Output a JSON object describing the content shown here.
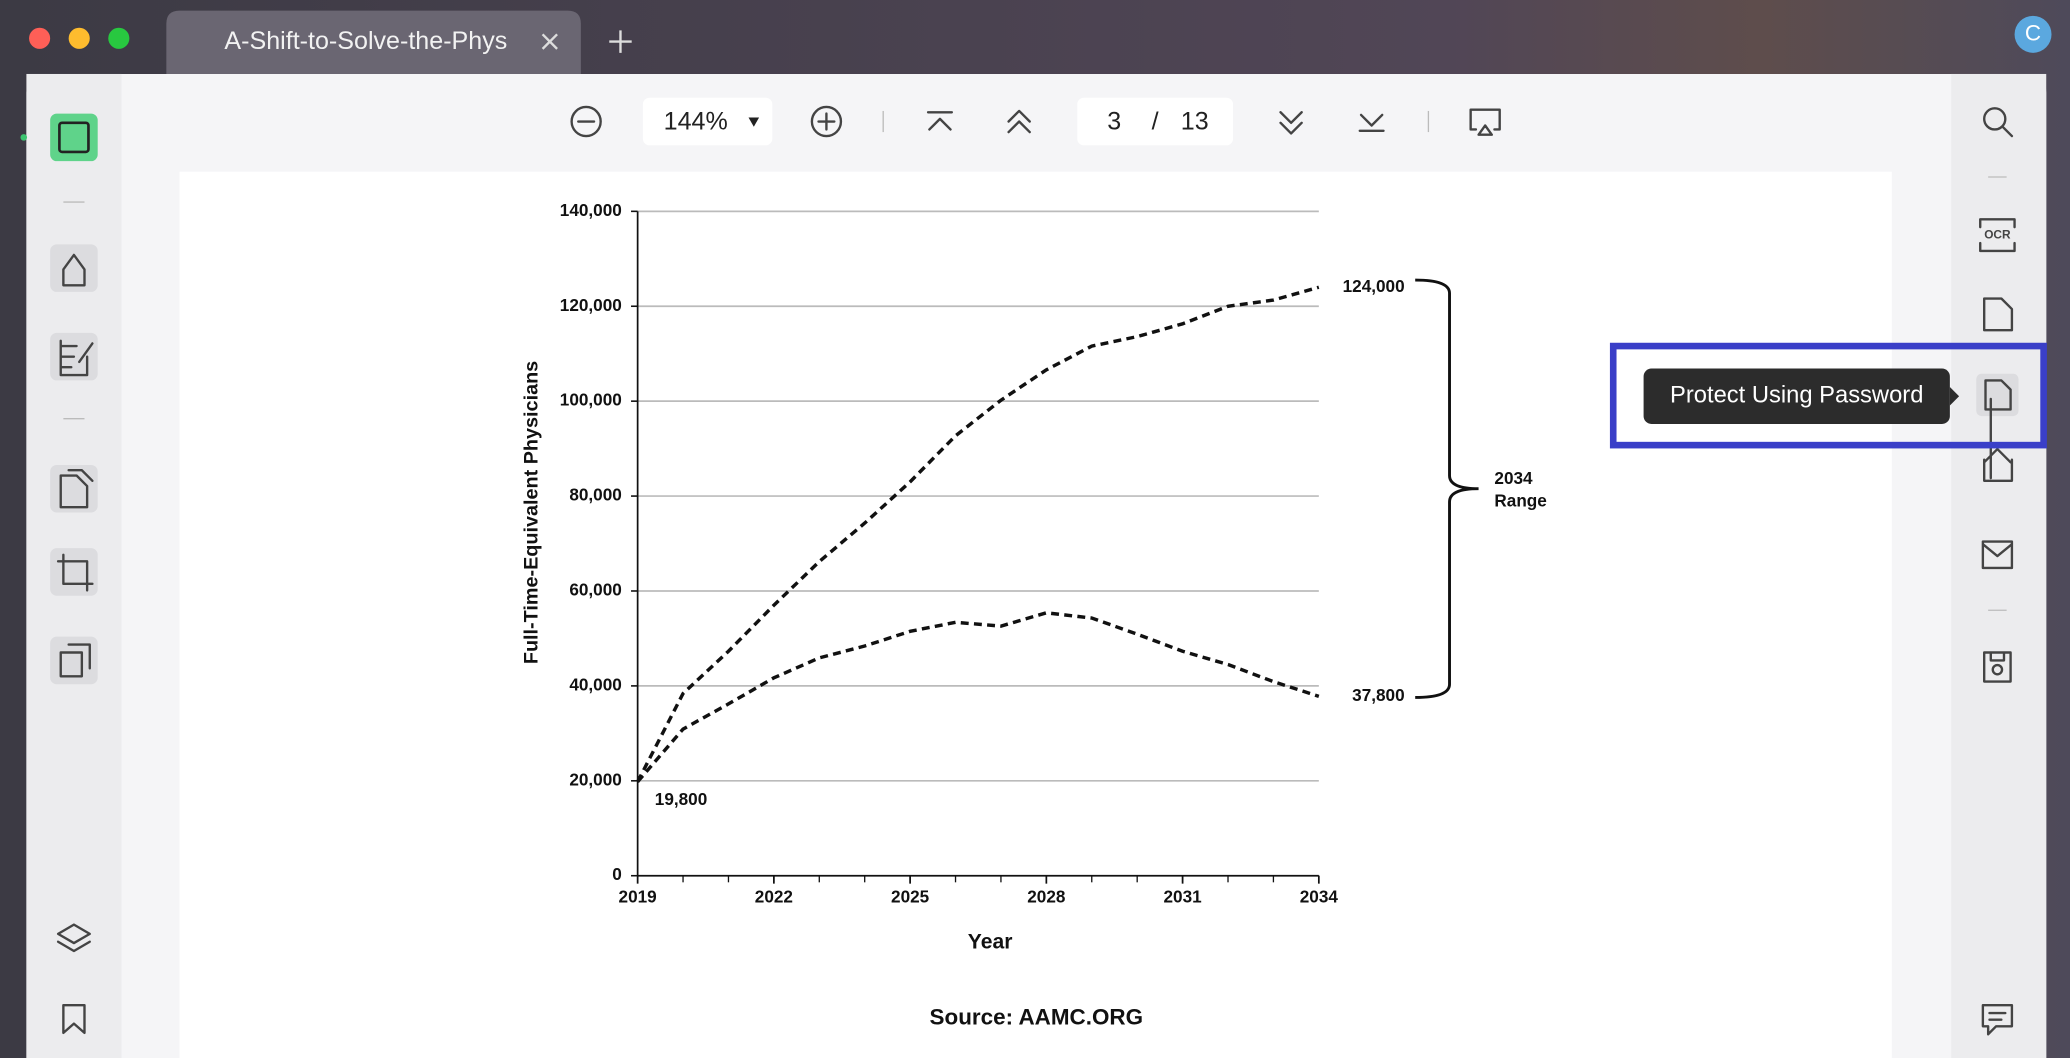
{
  "tab": {
    "title": "A-Shift-to-Solve-the-Phys"
  },
  "avatar": "C",
  "toolbar": {
    "zoom": "144%",
    "page": "3",
    "page_separator": "/",
    "page_total": "13"
  },
  "tooltip": "Protect Using Password",
  "chart_data": {
    "type": "line",
    "x": [
      2019,
      2020,
      2021,
      2022,
      2023,
      2024,
      2025,
      2026,
      2027,
      2028,
      2029,
      2030,
      2031,
      2032,
      2033,
      2034
    ],
    "series": [
      {
        "color": "#111111",
        "values": [
          19800,
          38400,
          47300,
          57000,
          66200,
          74300,
          83000,
          92700,
          100200,
          106600,
          111600,
          113600,
          116300,
          120000,
          121300,
          124000
        ],
        "value_labels": [
          null,
          null,
          null,
          null,
          null,
          null,
          null,
          null,
          null,
          null,
          null,
          null,
          null,
          null,
          null,
          "124,000"
        ]
      },
      {
        "color": "#111111",
        "values": [
          19800,
          30900,
          36200,
          41700,
          45900,
          48400,
          51500,
          53400,
          52600,
          55400,
          54300,
          50900,
          47300,
          44500,
          40900,
          37800
        ],
        "value_labels": [
          "19,800",
          null,
          null,
          null,
          null,
          null,
          null,
          null,
          null,
          null,
          null,
          null,
          null,
          null,
          null,
          "37,800"
        ]
      }
    ],
    "xlim": [
      2019,
      2034
    ],
    "xticks": [
      2019,
      2022,
      2025,
      2028,
      2031,
      2034
    ],
    "ylim": [
      0,
      140000
    ],
    "yticks": [
      0,
      {
        "value": 20000,
        "label": "20,000"
      },
      {
        "value": 40000,
        "label": "40,000"
      },
      {
        "value": 60000,
        "label": "60,000"
      },
      {
        "value": 80000,
        "label": "80,000"
      },
      {
        "value": 100000,
        "label": "100,000"
      },
      {
        "value": 120000,
        "label": "120,000"
      },
      {
        "value": 140000,
        "label": "140,000"
      }
    ],
    "grid": true,
    "xlabel": "Year",
    "ylabel": "Full-Time-Equivalent Physicians",
    "range_label": [
      "2034",
      "Range"
    ],
    "source": "Source: AAMC.ORG"
  }
}
